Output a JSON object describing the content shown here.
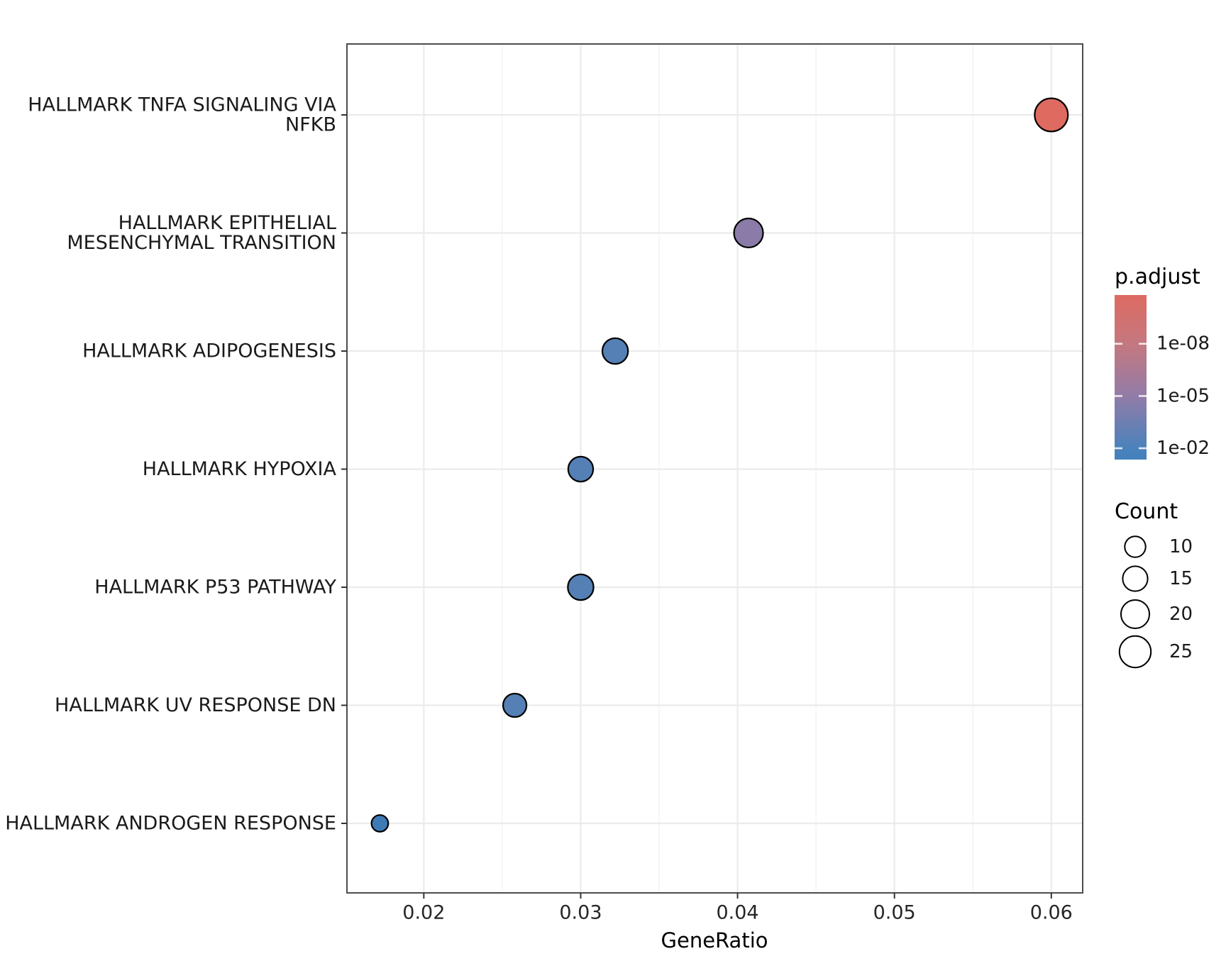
{
  "chart_data": {
    "type": "scatter",
    "title": "",
    "xlabel": "GeneRatio",
    "ylabel": "",
    "x_ticks": [
      "0.02",
      "0.03",
      "0.04",
      "0.05",
      "0.06"
    ],
    "x_minor_ticks": [
      0.025,
      0.035,
      0.045,
      0.055
    ],
    "xlim": [
      0.0151,
      0.062
    ],
    "grid": true,
    "legend_position": "right",
    "points": [
      {
        "pathway": "HALLMARK TNFA SIGNALING VIA NFKB",
        "label_lines": [
          "HALLMARK TNFA SIGNALING VIA",
          "NFKB"
        ],
        "gene_ratio": 0.06,
        "count": 28,
        "p_adjust": 1e-11,
        "dot_color": "#DF6A60"
      },
      {
        "pathway": "HALLMARK EPITHELIAL MESENCHYMAL TRANSITION",
        "label_lines": [
          "HALLMARK EPITHELIAL",
          "MESENCHYMAL TRANSITION"
        ],
        "gene_ratio": 0.0407,
        "count": 21,
        "p_adjust": 2e-05,
        "dot_color": "#8A7BA8"
      },
      {
        "pathway": "HALLMARK ADIPOGENESIS",
        "label_lines": [
          "HALLMARK ADIPOGENESIS"
        ],
        "gene_ratio": 0.0322,
        "count": 16,
        "p_adjust": 0.003,
        "dot_color": "#5580B5"
      },
      {
        "pathway": "HALLMARK HYPOXIA",
        "label_lines": [
          "HALLMARK HYPOXIA"
        ],
        "gene_ratio": 0.03,
        "count": 15,
        "p_adjust": 0.003,
        "dot_color": "#5580B5"
      },
      {
        "pathway": "HALLMARK P53 PATHWAY",
        "label_lines": [
          "HALLMARK P53 PATHWAY"
        ],
        "gene_ratio": 0.03,
        "count": 16,
        "p_adjust": 0.003,
        "dot_color": "#5580B5"
      },
      {
        "pathway": "HALLMARK UV RESPONSE DN",
        "label_lines": [
          "HALLMARK UV RESPONSE DN"
        ],
        "gene_ratio": 0.0258,
        "count": 13,
        "p_adjust": 0.004,
        "dot_color": "#5580B5"
      },
      {
        "pathway": "HALLMARK ANDROGEN RESPONSE",
        "label_lines": [
          "HALLMARK ANDROGEN RESPONSE"
        ],
        "gene_ratio": 0.0172,
        "count": 6,
        "p_adjust": 0.02,
        "dot_color": "#3E7AB6"
      }
    ],
    "legend_color": {
      "title": "p.adjust",
      "tick_labels": [
        "1e-08",
        "1e-05",
        "1e-02"
      ],
      "gradient_stops": [
        {
          "offset": 0.0,
          "color": "#DD6A61"
        },
        {
          "offset": 0.3,
          "color": "#C47880"
        },
        {
          "offset": 0.61,
          "color": "#937CA7"
        },
        {
          "offset": 0.93,
          "color": "#4B82BB"
        },
        {
          "offset": 1.0,
          "color": "#4380BC"
        }
      ]
    },
    "legend_size": {
      "title": "Count",
      "breaks": [
        "10",
        "15",
        "20",
        "25"
      ]
    },
    "style_colors": {
      "grid_major": "#EBEBEB",
      "grid_minor": "#F4F4F4",
      "panel_border": "#4D4D4D",
      "tick_mark": "#333333",
      "dot_outline": "#000000",
      "background": "#FFFFFF"
    }
  }
}
